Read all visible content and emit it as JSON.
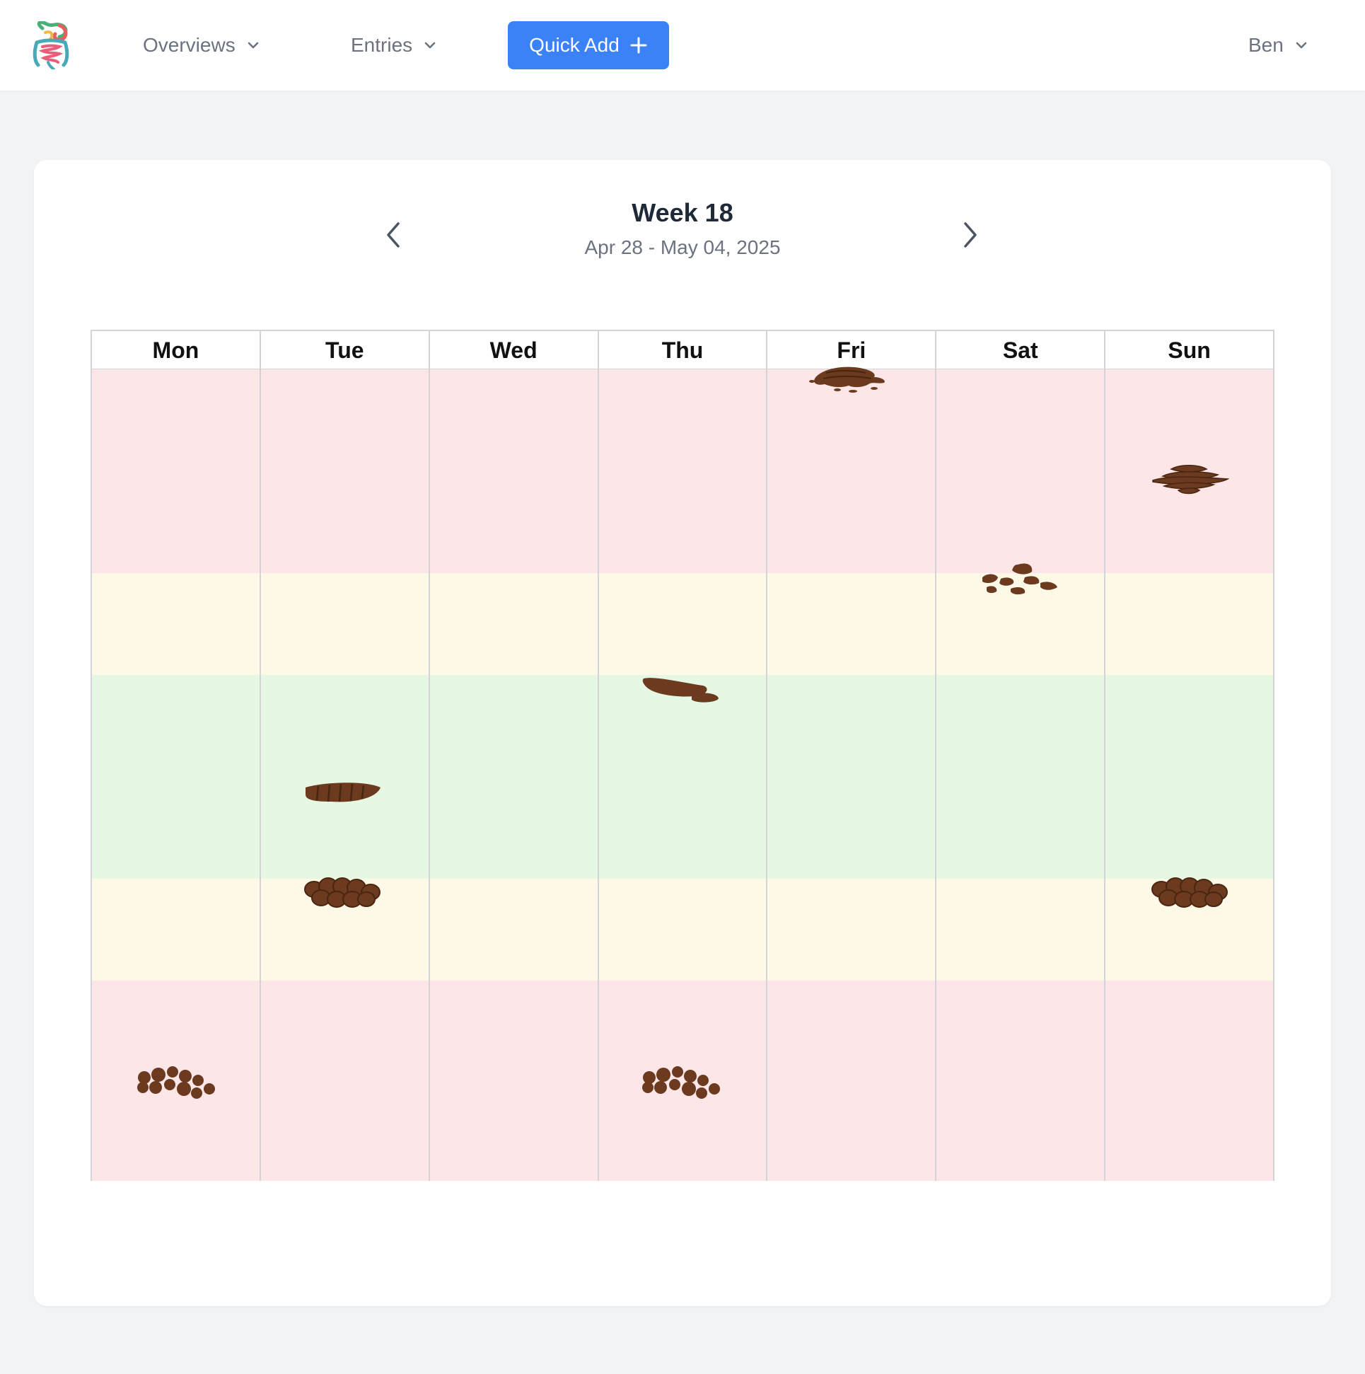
{
  "nav": {
    "overviews_label": "Overviews",
    "entries_label": "Entries",
    "quick_add_label": "Quick Add",
    "user_label": "Ben"
  },
  "week": {
    "title": "Week 18",
    "range": "Apr 28 - May 04, 2025"
  },
  "calendar": {
    "days": [
      "Mon",
      "Tue",
      "Wed",
      "Thu",
      "Fri",
      "Sat",
      "Sun"
    ],
    "zones": [
      "red",
      "yellow",
      "green",
      "yellow",
      "red"
    ],
    "colors": {
      "red": "#fde6e7",
      "yellow": "#fef8e7",
      "green": "#e6f8e4",
      "stool": "#6b3a1f",
      "accent": "#3b82f6"
    },
    "entries": [
      {
        "day": "Mon",
        "type": "separate-hard-lumps-icon"
      },
      {
        "day": "Tue",
        "type": "sausage-cracked-icon"
      },
      {
        "day": "Tue",
        "type": "lumpy-sausage-icon"
      },
      {
        "day": "Thu",
        "type": "smooth-sausage-icon"
      },
      {
        "day": "Thu",
        "type": "separate-hard-lumps-icon"
      },
      {
        "day": "Fri",
        "type": "watery-icon"
      },
      {
        "day": "Sat",
        "type": "soft-blobs-icon"
      },
      {
        "day": "Sun",
        "type": "mushy-icon"
      },
      {
        "day": "Sun",
        "type": "lumpy-sausage-icon"
      }
    ]
  }
}
